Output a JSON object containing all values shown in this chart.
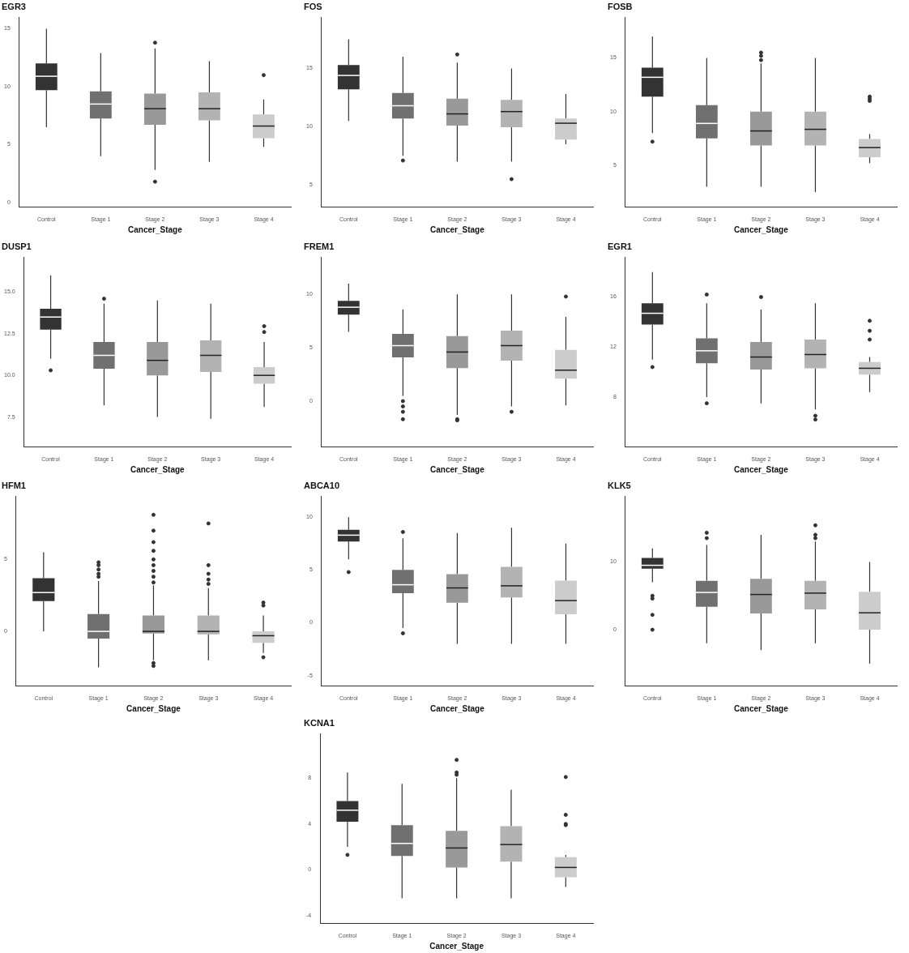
{
  "chart_data": [
    {
      "type": "box",
      "title": "EGR3",
      "xlabel": "Cancer_Stage",
      "categories": [
        "Control",
        "Stage 1",
        "Stage 2",
        "Stage 3",
        "Stage 4"
      ],
      "colors": [
        "#333333",
        "#707070",
        "#999999",
        "#b3b3b3",
        "#cccccc"
      ],
      "ylim": [
        -0.4,
        16
      ],
      "yticks": [
        0,
        5,
        10,
        15
      ],
      "grid": false,
      "boxes": [
        {
          "low": 6.5,
          "q1": 9.7,
          "median": 10.9,
          "q3": 12.0,
          "high": 15
        },
        {
          "low": 4,
          "q1": 7.25,
          "median": 8.5,
          "q3": 9.6,
          "high": 12.9
        },
        {
          "low": 2.8,
          "q1": 6.7,
          "median": 8.1,
          "q3": 9.4,
          "high": 13.3,
          "outliers": [
            13.8,
            1.8
          ]
        },
        {
          "low": 3.5,
          "q1": 7.1,
          "median": 8.1,
          "q3": 9.5,
          "high": 12.2
        },
        {
          "low": 4.8,
          "q1": 5.55,
          "median": 6.6,
          "q3": 7.6,
          "high": 8.9,
          "outliers": [
            11
          ]
        }
      ]
    },
    {
      "type": "box",
      "title": "FOS",
      "xlabel": "Cancer_Stage",
      "categories": [
        "Control",
        "Stage 1",
        "Stage 2",
        "Stage 3",
        "Stage 4"
      ],
      "colors": [
        "#333333",
        "#707070",
        "#999999",
        "#b3b3b3",
        "#cccccc"
      ],
      "ylim": [
        3.1,
        19.4
      ],
      "yticks": [
        5,
        10,
        15
      ],
      "grid": false,
      "boxes": [
        {
          "low": 10.5,
          "q1": 13.2,
          "median": 14.4,
          "q3": 15.3,
          "high": 17.5
        },
        {
          "low": 7.5,
          "q1": 10.7,
          "median": 11.8,
          "q3": 12.9,
          "high": 16,
          "outliers": [
            7.1
          ]
        },
        {
          "low": 7,
          "q1": 10.1,
          "median": 11.1,
          "q3": 12.4,
          "high": 15.5,
          "outliers": [
            16.2
          ]
        },
        {
          "low": 7,
          "q1": 9.95,
          "median": 11.3,
          "q3": 12.3,
          "high": 15,
          "outliers": [
            5.5
          ]
        },
        {
          "low": 8.5,
          "q1": 8.9,
          "median": 10.3,
          "q3": 10.7,
          "high": 12.8
        }
      ]
    },
    {
      "type": "box",
      "title": "FOSB",
      "xlabel": "Cancer_Stage",
      "categories": [
        "Control",
        "Stage 1",
        "Stage 2",
        "Stage 3",
        "Stage 4"
      ],
      "colors": [
        "#333333",
        "#707070",
        "#999999",
        "#b3b3b3",
        "#cccccc"
      ],
      "ylim": [
        1.1,
        18.8
      ],
      "yticks": [
        5,
        10,
        15
      ],
      "grid": false,
      "boxes": [
        {
          "low": 8,
          "q1": 11.4,
          "median": 13.2,
          "q3": 14.1,
          "high": 17,
          "outliers": [
            7.2
          ]
        },
        {
          "low": 3,
          "q1": 7.5,
          "median": 8.9,
          "q3": 10.6,
          "high": 15
        },
        {
          "low": 3,
          "q1": 6.85,
          "median": 8.2,
          "q3": 10,
          "high": 14.5,
          "outliers": [
            15.5,
            15.2,
            14.8
          ]
        },
        {
          "low": 2.5,
          "q1": 6.85,
          "median": 8.35,
          "q3": 10,
          "high": 15
        },
        {
          "low": 5.2,
          "q1": 5.76,
          "median": 6.65,
          "q3": 7.45,
          "high": 7.9,
          "outliers": [
            11.4,
            11.2,
            11.0
          ]
        }
      ]
    },
    {
      "type": "box",
      "title": "DUSP1",
      "xlabel": "Cancer_Stage",
      "categories": [
        "Control",
        "Stage 1",
        "Stage 2",
        "Stage 3",
        "Stage 4"
      ],
      "colors": [
        "#333333",
        "#707070",
        "#999999",
        "#b3b3b3",
        "#cccccc"
      ],
      "ylim": [
        5.7,
        17.1
      ],
      "yticks": [
        {
          "value": 7.5,
          "label": "7.5"
        },
        {
          "value": 10,
          "label": "10.0"
        },
        {
          "value": 12.5,
          "label": "12.5"
        },
        {
          "value": 15,
          "label": "15.0"
        }
      ],
      "grid": false,
      "boxes": [
        {
          "low": 11,
          "q1": 12.74,
          "median": 13.5,
          "q3": 14.0,
          "high": 16,
          "outliers": [
            10.3
          ]
        },
        {
          "low": 8.2,
          "q1": 10.4,
          "median": 11.2,
          "q3": 12.0,
          "high": 14.3,
          "outliers": [
            14.6
          ]
        },
        {
          "low": 7.5,
          "q1": 10.0,
          "median": 10.9,
          "q3": 12.0,
          "high": 14.5
        },
        {
          "low": 7.4,
          "q1": 10.2,
          "median": 11.2,
          "q3": 12.1,
          "high": 14.3
        },
        {
          "low": 8.1,
          "q1": 9.5,
          "median": 10.0,
          "q3": 10.5,
          "high": 12.0,
          "outliers": [
            12.95,
            12.6
          ]
        }
      ]
    },
    {
      "type": "box",
      "title": "FREM1",
      "xlabel": "Cancer_Stage",
      "categories": [
        "Control",
        "Stage 1",
        "Stage 2",
        "Stage 3",
        "Stage 4"
      ],
      "colors": [
        "#333333",
        "#707070",
        "#999999",
        "#b3b3b3",
        "#cccccc"
      ],
      "ylim": [
        -4.3,
        13.5
      ],
      "yticks": [
        0,
        5,
        10
      ],
      "grid": false,
      "boxes": [
        {
          "low": 6.5,
          "q1": 8.1,
          "median": 8.8,
          "q3": 9.4,
          "high": 11
        },
        {
          "low": 0.5,
          "q1": 4.1,
          "median": 5.2,
          "q3": 6.3,
          "high": 8.6,
          "outliers": [
            0,
            -0.5,
            -1.0,
            -1.7
          ]
        },
        {
          "low": -1.3,
          "q1": 3.1,
          "median": 4.6,
          "q3": 6.1,
          "high": 10,
          "outliers": [
            -1.7,
            -1.8
          ]
        },
        {
          "low": -0.5,
          "q1": 3.8,
          "median": 5.2,
          "q3": 6.6,
          "high": 10,
          "outliers": [
            -1.0
          ]
        },
        {
          "low": -0.4,
          "q1": 2.1,
          "median": 2.9,
          "q3": 4.8,
          "high": 7.9,
          "outliers": [
            9.8
          ]
        }
      ]
    },
    {
      "type": "box",
      "title": "EGR1",
      "xlabel": "Cancer_Stage",
      "categories": [
        "Control",
        "Stage 1",
        "Stage 2",
        "Stage 3",
        "Stage 4"
      ],
      "colors": [
        "#333333",
        "#707070",
        "#999999",
        "#b3b3b3",
        "#cccccc"
      ],
      "ylim": [
        4.0,
        19.2
      ],
      "yticks": [
        8,
        12,
        16
      ],
      "grid": false,
      "boxes": [
        {
          "low": 11,
          "q1": 13.8,
          "median": 14.7,
          "q3": 15.5,
          "high": 18,
          "outliers": [
            10.4
          ]
        },
        {
          "low": 8,
          "q1": 10.7,
          "median": 11.7,
          "q3": 12.7,
          "high": 15.5,
          "outliers": [
            16.2,
            7.5
          ]
        },
        {
          "low": 7.5,
          "q1": 10.2,
          "median": 11.2,
          "q3": 12.4,
          "high": 15,
          "outliers": [
            16.0
          ]
        },
        {
          "low": 7,
          "q1": 10.3,
          "median": 11.4,
          "q3": 12.6,
          "high": 15.5,
          "outliers": [
            6.5,
            6.2
          ]
        },
        {
          "low": 8.4,
          "q1": 9.8,
          "median": 10.3,
          "q3": 10.8,
          "high": 11.2,
          "outliers": [
            14.1,
            13.3,
            12.6
          ]
        }
      ]
    },
    {
      "type": "box",
      "title": "HFM1",
      "xlabel": "Cancer_Stage",
      "categories": [
        "Control",
        "Stage 1",
        "Stage 2",
        "Stage 3",
        "Stage 4"
      ],
      "colors": [
        "#333333",
        "#707070",
        "#999999",
        "#b3b3b3",
        "#cccccc"
      ],
      "ylim": [
        -3.8,
        9.4
      ],
      "yticks": [
        0,
        5
      ],
      "grid": false,
      "boxes": [
        {
          "low": 0,
          "q1": 2.1,
          "median": 2.7,
          "q3": 3.7,
          "high": 5.5
        },
        {
          "low": -2.5,
          "q1": -0.5,
          "median": 0,
          "q3": 1.2,
          "high": 3.5,
          "outliers": [
            4.8,
            4.6,
            4.3,
            4.0,
            3.8
          ]
        },
        {
          "low": -2,
          "q1": -0.15,
          "median": 0,
          "q3": 1.1,
          "high": 3.2,
          "outliers": [
            8.1,
            7.0,
            6.2,
            5.6,
            5.0,
            4.6,
            4.2,
            3.8,
            3.4,
            -2.2,
            -2.4
          ]
        },
        {
          "low": -2,
          "q1": -0.2,
          "median": 0,
          "q3": 1.1,
          "high": 3,
          "outliers": [
            7.5,
            4.6,
            4.0,
            3.6,
            3.3
          ]
        },
        {
          "low": -1.5,
          "q1": -0.8,
          "median": -0.3,
          "q3": 0,
          "high": 1.1,
          "outliers": [
            2.0,
            1.8,
            -1.8
          ]
        }
      ]
    },
    {
      "type": "box",
      "title": "ABCA10",
      "xlabel": "Cancer_Stage",
      "categories": [
        "Control",
        "Stage 1",
        "Stage 2",
        "Stage 3",
        "Stage 4"
      ],
      "colors": [
        "#333333",
        "#707070",
        "#999999",
        "#b3b3b3",
        "#cccccc"
      ],
      "ylim": [
        -6,
        12
      ],
      "yticks": [
        -5,
        0,
        5,
        10
      ],
      "grid": false,
      "boxes": [
        {
          "low": 6,
          "q1": 7.7,
          "median": 8.3,
          "q3": 8.8,
          "high": 10,
          "outliers": [
            4.8
          ]
        },
        {
          "low": -0.5,
          "q1": 2.8,
          "median": 3.6,
          "q3": 5.0,
          "high": 8,
          "outliers": [
            8.6,
            -1.0
          ]
        },
        {
          "low": -2,
          "q1": 1.9,
          "median": 3.3,
          "q3": 4.6,
          "high": 8.5
        },
        {
          "low": -2,
          "q1": 2.4,
          "median": 3.5,
          "q3": 5.3,
          "high": 9
        },
        {
          "low": -2,
          "q1": 0.8,
          "median": 2.1,
          "q3": 4.0,
          "high": 7.5
        }
      ]
    },
    {
      "type": "box",
      "title": "KLK5",
      "xlabel": "Cancer_Stage",
      "categories": [
        "Control",
        "Stage 1",
        "Stage 2",
        "Stage 3",
        "Stage 4"
      ],
      "colors": [
        "#333333",
        "#707070",
        "#999999",
        "#b3b3b3",
        "#cccccc"
      ],
      "ylim": [
        -8.3,
        19.7
      ],
      "yticks": [
        0,
        10
      ],
      "grid": false,
      "boxes": [
        {
          "low": 7,
          "q1": 9.0,
          "median": 9.5,
          "q3": 10.6,
          "high": 12,
          "outliers": [
            5.0,
            4.6,
            2.2,
            0
          ]
        },
        {
          "low": -2,
          "q1": 3.4,
          "median": 5.5,
          "q3": 7.2,
          "high": 12.5,
          "outliers": [
            14.3,
            13.5
          ]
        },
        {
          "low": -3,
          "q1": 2.4,
          "median": 5.2,
          "q3": 7.5,
          "high": 14
        },
        {
          "low": -2,
          "q1": 3.0,
          "median": 5.4,
          "q3": 7.2,
          "high": 13,
          "outliers": [
            15.4,
            14,
            13.5
          ]
        },
        {
          "low": -5,
          "q1": 0,
          "median": 2.5,
          "q3": 5.6,
          "high": 10
        }
      ]
    },
    {
      "type": "box",
      "title": "KCNA1",
      "xlabel": "Cancer_Stage",
      "categories": [
        "Control",
        "Stage 1",
        "Stage 2",
        "Stage 3",
        "Stage 4"
      ],
      "colors": [
        "#333333",
        "#707070",
        "#999999",
        "#b3b3b3",
        "#cccccc"
      ],
      "ylim": [
        -4.7,
        11.9
      ],
      "yticks": [
        -4,
        0,
        4,
        8
      ],
      "grid": false,
      "boxes": [
        {
          "low": 2,
          "q1": 4.2,
          "median": 5.2,
          "q3": 6.0,
          "high": 8.5,
          "outliers": [
            1.3
          ]
        },
        {
          "low": -2.5,
          "q1": 1.2,
          "median": 2.3,
          "q3": 3.9,
          "high": 7.5
        },
        {
          "low": -2.5,
          "q1": 0.2,
          "median": 1.9,
          "q3": 3.4,
          "high": 8,
          "outliers": [
            9.6,
            8.5,
            8.3
          ]
        },
        {
          "low": -2.5,
          "q1": 0.7,
          "median": 2.2,
          "q3": 3.8,
          "high": 7
        },
        {
          "low": -1.5,
          "q1": -0.65,
          "median": 0.2,
          "q3": 1.1,
          "high": 1.3,
          "outliers": [
            8.1,
            4.8,
            4.0,
            3.9
          ]
        }
      ]
    }
  ]
}
